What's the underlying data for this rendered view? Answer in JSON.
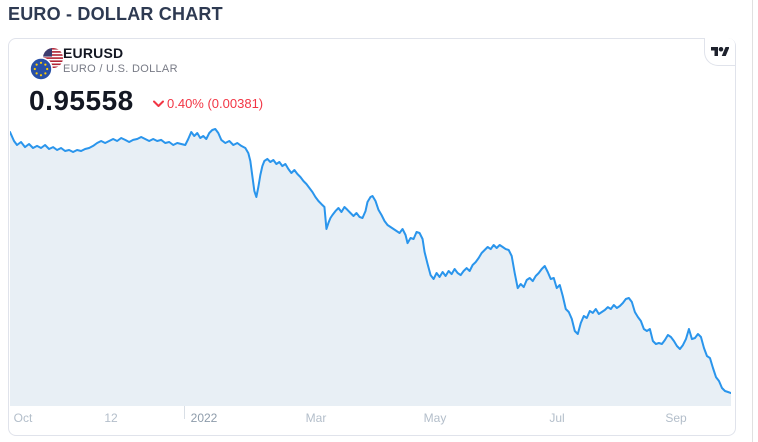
{
  "page": {
    "title": "EURO - DOLLAR CHART"
  },
  "widget": {
    "symbol": "EURUSD",
    "symbol_description": "EURO / U.S. DOLLAR",
    "price": "0.95558",
    "change_direction": "down",
    "change_text": "0.40% (0.00381)",
    "logo_icon": "tradingview-logo",
    "flag_icon": "eu-us-flag-pair",
    "colors": {
      "accent_line": "#2A95EC",
      "area_fill": "#E8EFF5",
      "change_negative": "#F23645",
      "text_dark": "#131722",
      "text_gray": "#787B86",
      "axis_label": "#B3BECA",
      "axis_year_label": "#8E9CAB",
      "card_border": "#E0E3EB",
      "title": "#2E3A52"
    }
  },
  "chart_data": {
    "type": "area",
    "title": "EURUSD — EURO / U.S. DOLLAR, 1 year",
    "xlabel": "",
    "ylabel": "",
    "ylim": [
      0.945,
      1.175
    ],
    "grid": false,
    "legend": "none",
    "x_labels": [
      {
        "text": "Oct",
        "pos": 13
      },
      {
        "text": "12",
        "pos": 101
      },
      {
        "text": "2022",
        "pos": 194,
        "year": true
      },
      {
        "text": "Mar",
        "pos": 306
      },
      {
        "text": "May",
        "pos": 425
      },
      {
        "text": "Jul",
        "pos": 547
      },
      {
        "text": "Sep",
        "pos": 666
      }
    ],
    "series": [
      {
        "name": "EURUSD",
        "points": [
          [
            0,
            1.1685
          ],
          [
            4,
            1.1611
          ],
          [
            7,
            1.1579
          ],
          [
            11,
            1.1603
          ],
          [
            15,
            1.1562
          ],
          [
            19,
            1.1587
          ],
          [
            23,
            1.1554
          ],
          [
            27,
            1.1571
          ],
          [
            31,
            1.1554
          ],
          [
            35,
            1.1579
          ],
          [
            39,
            1.1546
          ],
          [
            43,
            1.1562
          ],
          [
            47,
            1.1538
          ],
          [
            51,
            1.1554
          ],
          [
            55,
            1.153
          ],
          [
            59,
            1.1538
          ],
          [
            63,
            1.1522
          ],
          [
            67,
            1.1538
          ],
          [
            71,
            1.153
          ],
          [
            75,
            1.1546
          ],
          [
            79,
            1.1554
          ],
          [
            83,
            1.1571
          ],
          [
            87,
            1.1595
          ],
          [
            91,
            1.1611
          ],
          [
            95,
            1.1595
          ],
          [
            99,
            1.1611
          ],
          [
            103,
            1.1628
          ],
          [
            107,
            1.1611
          ],
          [
            111,
            1.1636
          ],
          [
            115,
            1.162
          ],
          [
            119,
            1.1603
          ],
          [
            123,
            1.162
          ],
          [
            127,
            1.1628
          ],
          [
            131,
            1.1644
          ],
          [
            135,
            1.1628
          ],
          [
            139,
            1.1611
          ],
          [
            143,
            1.1628
          ],
          [
            147,
            1.1611
          ],
          [
            151,
            1.162
          ],
          [
            155,
            1.1595
          ],
          [
            159,
            1.1603
          ],
          [
            163,
            1.1579
          ],
          [
            167,
            1.1595
          ],
          [
            171,
            1.1587
          ],
          [
            175,
            1.1579
          ],
          [
            178,
            1.1628
          ],
          [
            181,
            1.1685
          ],
          [
            184,
            1.1652
          ],
          [
            187,
            1.1677
          ],
          [
            190,
            1.1636
          ],
          [
            193,
            1.1652
          ],
          [
            196,
            1.1628
          ],
          [
            199,
            1.1677
          ],
          [
            202,
            1.1701
          ],
          [
            205,
            1.1709
          ],
          [
            208,
            1.1677
          ],
          [
            211,
            1.162
          ],
          [
            215,
            1.1595
          ],
          [
            219,
            1.1611
          ],
          [
            223,
            1.1579
          ],
          [
            227,
            1.1595
          ],
          [
            231,
            1.1571
          ],
          [
            235,
            1.1554
          ],
          [
            238,
            1.1513
          ],
          [
            240,
            1.1448
          ],
          [
            242,
            1.1326
          ],
          [
            244,
            1.1204
          ],
          [
            246,
            1.1155
          ],
          [
            248,
            1.1236
          ],
          [
            250,
            1.1334
          ],
          [
            252,
            1.1407
          ],
          [
            254,
            1.1448
          ],
          [
            257,
            1.1465
          ],
          [
            260,
            1.144
          ],
          [
            263,
            1.1456
          ],
          [
            266,
            1.1424
          ],
          [
            269,
            1.144
          ],
          [
            272,
            1.1407
          ],
          [
            275,
            1.1424
          ],
          [
            278,
            1.1383
          ],
          [
            281,
            1.135
          ],
          [
            284,
            1.1375
          ],
          [
            287,
            1.1342
          ],
          [
            290,
            1.1318
          ],
          [
            293,
            1.1285
          ],
          [
            296,
            1.1261
          ],
          [
            299,
            1.1228
          ],
          [
            302,
            1.1195
          ],
          [
            305,
            1.1155
          ],
          [
            308,
            1.1122
          ],
          [
            311,
            1.1097
          ],
          [
            314,
            1.1073
          ],
          [
            316,
            1.0894
          ],
          [
            318,
            1.0943
          ],
          [
            320,
            1.0983
          ],
          [
            322,
            1.1008
          ],
          [
            325,
            1.104
          ],
          [
            328,
            1.1065
          ],
          [
            331,
            1.1032
          ],
          [
            334,
            1.1073
          ],
          [
            337,
            1.1049
          ],
          [
            340,
            1.1024
          ],
          [
            343,
            1.1
          ],
          [
            346,
            1.1024
          ],
          [
            349,
            1.0992
          ],
          [
            352,
            1.0983
          ],
          [
            355,
            1.104
          ],
          [
            357,
            1.1114
          ],
          [
            360,
            1.1155
          ],
          [
            362,
            1.1163
          ],
          [
            365,
            1.1122
          ],
          [
            368,
            1.1049
          ],
          [
            371,
            1.1008
          ],
          [
            374,
            1.0959
          ],
          [
            377,
            1.0926
          ],
          [
            380,
            1.091
          ],
          [
            383,
            1.0894
          ],
          [
            386,
            1.0877
          ],
          [
            389,
            1.0861
          ],
          [
            392,
            1.0894
          ],
          [
            395,
            1.0845
          ],
          [
            397,
            1.0779
          ],
          [
            400,
            1.082
          ],
          [
            403,
            1.0812
          ],
          [
            406,
            1.0869
          ],
          [
            409,
            1.0861
          ],
          [
            412,
            1.0812
          ],
          [
            414,
            1.0706
          ],
          [
            417,
            1.0608
          ],
          [
            420,
            1.0518
          ],
          [
            423,
            1.0486
          ],
          [
            426,
            1.0535
          ],
          [
            429,
            1.0502
          ],
          [
            432,
            1.0543
          ],
          [
            435,
            1.051
          ],
          [
            438,
            1.0551
          ],
          [
            441,
            1.0526
          ],
          [
            444,
            1.0567
          ],
          [
            447,
            1.0535
          ],
          [
            450,
            1.0518
          ],
          [
            453,
            1.0551
          ],
          [
            456,
            1.0575
          ],
          [
            459,
            1.0551
          ],
          [
            462,
            1.06
          ],
          [
            465,
            1.0624
          ],
          [
            468,
            1.0657
          ],
          [
            471,
            1.0698
          ],
          [
            474,
            1.0722
          ],
          [
            477,
            1.0747
          ],
          [
            480,
            1.073
          ],
          [
            483,
            1.0763
          ],
          [
            486,
            1.0739
          ],
          [
            489,
            1.0763
          ],
          [
            492,
            1.0747
          ],
          [
            495,
            1.073
          ],
          [
            498,
            1.0722
          ],
          [
            501,
            1.0673
          ],
          [
            504,
            1.0535
          ],
          [
            507,
            1.0412
          ],
          [
            510,
            1.0445
          ],
          [
            513,
            1.042
          ],
          [
            516,
            1.0478
          ],
          [
            519,
            1.0494
          ],
          [
            522,
            1.0469
          ],
          [
            525,
            1.051
          ],
          [
            528,
            1.0535
          ],
          [
            531,
            1.0567
          ],
          [
            534,
            1.0592
          ],
          [
            537,
            1.0543
          ],
          [
            540,
            1.0486
          ],
          [
            543,
            1.0494
          ],
          [
            546,
            1.0412
          ],
          [
            549,
            1.0437
          ],
          [
            552,
            1.0347
          ],
          [
            555,
            1.0241
          ],
          [
            558,
            1.0217
          ],
          [
            561,
            1.016
          ],
          [
            564,
            1.0062
          ],
          [
            567,
            1.0037
          ],
          [
            570,
            1.0127
          ],
          [
            573,
            1.0184
          ],
          [
            576,
            1.0168
          ],
          [
            579,
            1.0225
          ],
          [
            582,
            1.0209
          ],
          [
            585,
            1.0241
          ],
          [
            588,
            1.02
          ],
          [
            591,
            1.0217
          ],
          [
            594,
            1.0233
          ],
          [
            597,
            1.0257
          ],
          [
            600,
            1.0241
          ],
          [
            603,
            1.0274
          ],
          [
            606,
            1.0249
          ],
          [
            609,
            1.0266
          ],
          [
            612,
            1.029
          ],
          [
            615,
            1.0323
          ],
          [
            618,
            1.0331
          ],
          [
            621,
            1.0298
          ],
          [
            624,
            1.0217
          ],
          [
            627,
            1.0176
          ],
          [
            630,
            1.0143
          ],
          [
            633,
            1.0078
          ],
          [
            636,
            1.0062
          ],
          [
            639,
            1.0078
          ],
          [
            642,
            0.998
          ],
          [
            645,
            0.9956
          ],
          [
            648,
            0.9964
          ],
          [
            651,
            0.9956
          ],
          [
            654,
            0.9988
          ],
          [
            657,
            1.0029
          ],
          [
            660,
            1.0013
          ],
          [
            663,
            0.998
          ],
          [
            666,
            0.9939
          ],
          [
            669,
            0.9915
          ],
          [
            672,
            0.9947
          ],
          [
            675,
            0.9996
          ],
          [
            678,
            1.0078
          ],
          [
            681,
            0.9996
          ],
          [
            684,
            1.0005
          ],
          [
            687,
            1.0037
          ],
          [
            690,
            1.0013
          ],
          [
            693,
            0.9923
          ],
          [
            696,
            0.9858
          ],
          [
            699,
            0.9841
          ],
          [
            702,
            0.976
          ],
          [
            705,
            0.9686
          ],
          [
            708,
            0.9654
          ],
          [
            711,
            0.9597
          ],
          [
            714,
            0.9572
          ],
          [
            717,
            0.9564
          ],
          [
            720,
            0.9556
          ]
        ]
      }
    ]
  }
}
